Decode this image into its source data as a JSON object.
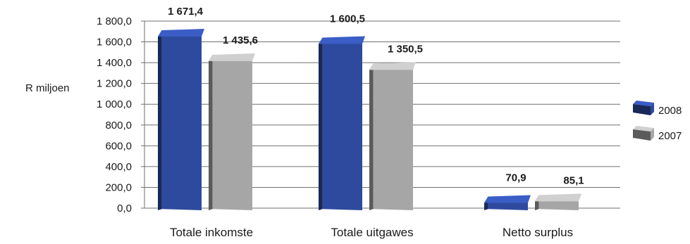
{
  "chart_data": {
    "type": "bar",
    "categories": [
      "Totale inkomste",
      "Totale uitgawes",
      "Netto surplus"
    ],
    "series": [
      {
        "name": "2008",
        "values": [
          1671.4,
          1600.5,
          70.9
        ],
        "labels": [
          "1 671,4",
          "1 600,5",
          "70,9"
        ]
      },
      {
        "name": "2007",
        "values": [
          1435.6,
          1350.5,
          85.1
        ],
        "labels": [
          "1 435,6",
          "1 350,5",
          "85,1"
        ]
      }
    ],
    "ylabel": "R miljoen",
    "ylim": [
      0,
      1800
    ],
    "yticks": [
      "0,0",
      "200,0",
      "400,0",
      "600,0",
      "800,0",
      "1 000,0",
      "1 200,0",
      "1 400,0",
      "1 600,0",
      "1 800,0"
    ],
    "grid": true,
    "legend_position": "right",
    "colors": {
      "2008": "#2e4a9e",
      "2007": "#a6a6a6"
    }
  }
}
